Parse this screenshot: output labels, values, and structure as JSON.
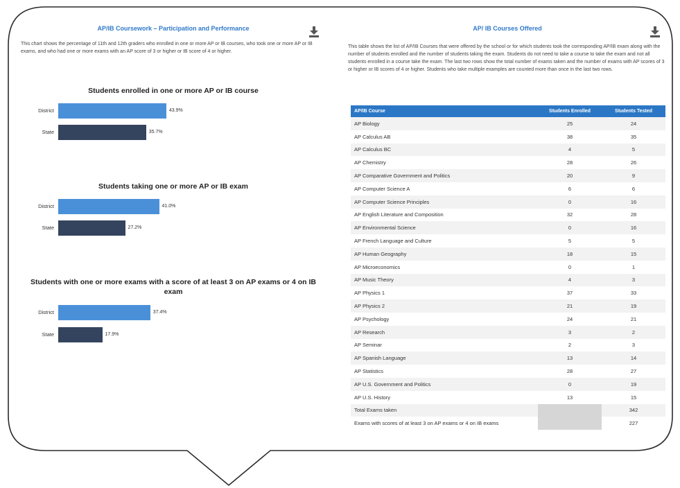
{
  "left": {
    "title": "AP/IB Coursework – Participation and Performance",
    "description": "This chart shows the percentage of 11th and 12th graders who enrolled in one or more AP or IB courses, who took one or more AP or IB exams, and who had one or more exams with an AP score of 3 or higher or IB score of 4 or higher.",
    "download_icon": "download-icon",
    "charts": [
      {
        "title": "Students enrolled in one or more AP or IB course",
        "rows": [
          {
            "label": "District",
            "value": 43.9,
            "text": "43.9%"
          },
          {
            "label": "State",
            "value": 35.7,
            "text": "35.7%"
          }
        ]
      },
      {
        "title": "Students taking one or more AP or IB exam",
        "rows": [
          {
            "label": "District",
            "value": 41.0,
            "text": "41.0%"
          },
          {
            "label": "State",
            "value": 27.2,
            "text": "27.2%"
          }
        ]
      },
      {
        "title": "Students with one or more exams with a score of at least 3 on AP exams or 4 on IB exam",
        "rows": [
          {
            "label": "District",
            "value": 37.4,
            "text": "37.4%"
          },
          {
            "label": "State",
            "value": 17.9,
            "text": "17.9%"
          }
        ]
      }
    ]
  },
  "right": {
    "title": "AP/ IB Courses Offered",
    "description": "This table shows the list of AP/IB Courses that were offered by the school or for which students took the corresponding AP/IB exam along with the number of students enrolled and the number of students taking the exam. Students do not need to take a course to take the exam and not all students enrolled in a course take the exam. The last two rows show the total number of exams taken and the number of exams with AP scores of 3 or higher or IB scores of 4 or higher. Students who take multiple examples are counted more than once in the last two rows.",
    "download_icon": "download-icon",
    "columns": [
      "AP/IB Course",
      "Students Enrolled",
      "Students Tested"
    ],
    "rows": [
      [
        "AP Biology",
        "25",
        "24"
      ],
      [
        "AP Calculus AB",
        "38",
        "35"
      ],
      [
        "AP Calculus BC",
        "4",
        "5"
      ],
      [
        "AP Chemistry",
        "28",
        "26"
      ],
      [
        "AP Comparative Government and Politics",
        "20",
        "9"
      ],
      [
        "AP Computer Science A",
        "6",
        "6"
      ],
      [
        "AP Computer Science Principles",
        "0",
        "16"
      ],
      [
        "AP English Literature and Composition",
        "32",
        "28"
      ],
      [
        "AP Environmental Science",
        "0",
        "16"
      ],
      [
        "AP French Language and Culture",
        "5",
        "5"
      ],
      [
        "AP Human Geography",
        "18",
        "15"
      ],
      [
        "AP Microeconomics",
        "0",
        "1"
      ],
      [
        "AP Music Theory",
        "4",
        "3"
      ],
      [
        "AP Physics 1",
        "37",
        "33"
      ],
      [
        "AP Physics 2",
        "21",
        "19"
      ],
      [
        "AP Psychology",
        "24",
        "21"
      ],
      [
        "AP Research",
        "3",
        "2"
      ],
      [
        "AP Seminar",
        "2",
        "3"
      ],
      [
        "AP Spanish Language",
        "13",
        "14"
      ],
      [
        "AP Statistics",
        "28",
        "27"
      ],
      [
        "AP U.S. Government and Politics",
        "0",
        "19"
      ],
      [
        "AP U.S. History",
        "13",
        "15"
      ]
    ],
    "totals": [
      [
        "Total Exams taken",
        "",
        "342"
      ],
      [
        "Exams with scores of at least 3 on AP exams or 4 on IB exams",
        "",
        "227"
      ]
    ]
  },
  "colors": {
    "district": "#4a90d9",
    "state": "#34445e",
    "header": "#2b77c6",
    "title": "#2f7ac9"
  }
}
